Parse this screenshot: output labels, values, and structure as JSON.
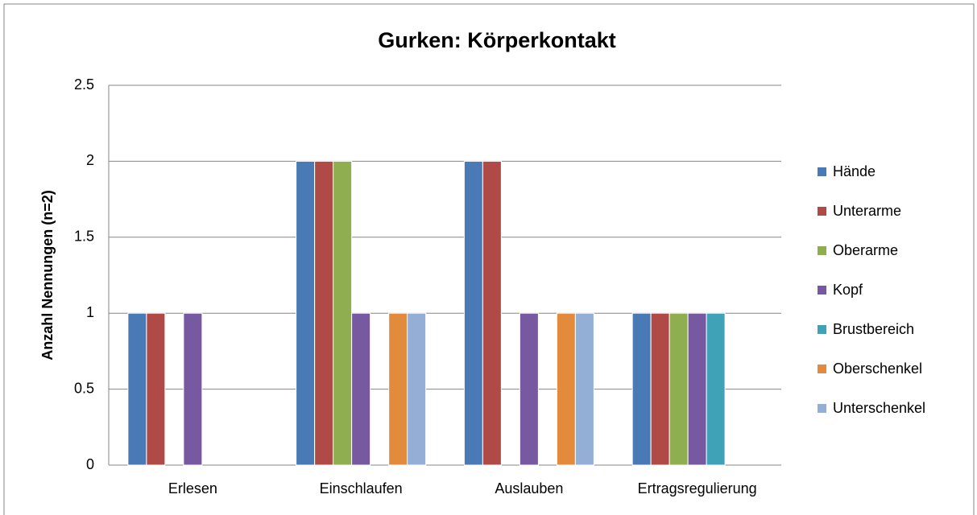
{
  "chart_data": {
    "type": "bar",
    "title": "Gurken: Körperkontakt",
    "y_label": "Anzahl Nennungen (n=2)",
    "categories": [
      "Erlesen",
      "Einschlaufen",
      "Auslauben",
      "Ertragsregulierung"
    ],
    "series": [
      {
        "name": "Hände",
        "color": "#4a7ab5",
        "values": [
          1,
          2,
          2,
          1
        ]
      },
      {
        "name": "Unterarme",
        "color": "#b04a46",
        "values": [
          1,
          2,
          2,
          1
        ]
      },
      {
        "name": "Oberarme",
        "color": "#8fae4f",
        "values": [
          0,
          2,
          0,
          1
        ]
      },
      {
        "name": "Kopf",
        "color": "#7659a0",
        "values": [
          1,
          1,
          1,
          1
        ]
      },
      {
        "name": "Brustbereich",
        "color": "#3fa2b6",
        "values": [
          0,
          0,
          0,
          1
        ]
      },
      {
        "name": "Oberschenkel",
        "color": "#e38b3d",
        "values": [
          0,
          1,
          1,
          0
        ]
      },
      {
        "name": "Unterschenkel",
        "color": "#94afd6",
        "values": [
          0,
          1,
          1,
          0
        ]
      }
    ],
    "ylim": [
      0,
      2.5
    ],
    "yticks": [
      0,
      0.5,
      1,
      1.5,
      2,
      2.5
    ],
    "grid": true,
    "legend": "right"
  }
}
